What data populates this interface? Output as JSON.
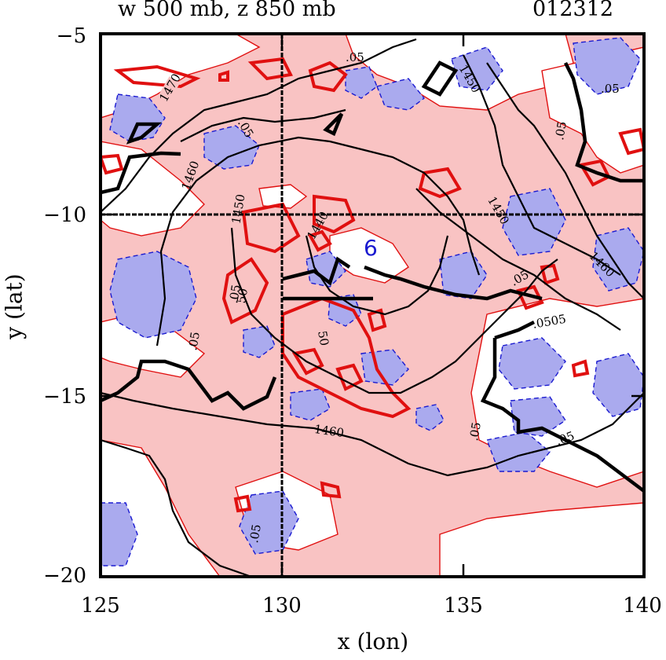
{
  "title": {
    "left": "w 500 mb, z 850 mb",
    "right": "012312"
  },
  "axes": {
    "xlabel": "x (lon)",
    "ylabel": "y (lat)",
    "xlim": [
      125,
      140
    ],
    "ylim": [
      -20,
      -5
    ],
    "xticks": [
      "125",
      "130",
      "135",
      "140"
    ],
    "yticks": [
      "−5",
      "−10",
      "−15",
      "−20"
    ]
  },
  "overlay": {
    "reference_lon": 130,
    "reference_lat": -10,
    "center_marker": "6"
  },
  "contour_labels": {
    "height": [
      "1470",
      "1460",
      "1450",
      "1440",
      "1460",
      "1450",
      "1460",
      "1450"
    ],
    "omega": [
      ".05",
      ".05",
      ".05",
      ".05",
      ".05",
      ".05",
      ".05",
      ".0505",
      ".05",
      ".05",
      ".05",
      "50",
      "50"
    ]
  },
  "colors": {
    "positive_fill": "#f9c3c3",
    "negative_fill": "#aaaaee",
    "positive_contour": "#e01010",
    "negative_contour": "#1a1ad0",
    "height_contour": "#000000"
  }
}
